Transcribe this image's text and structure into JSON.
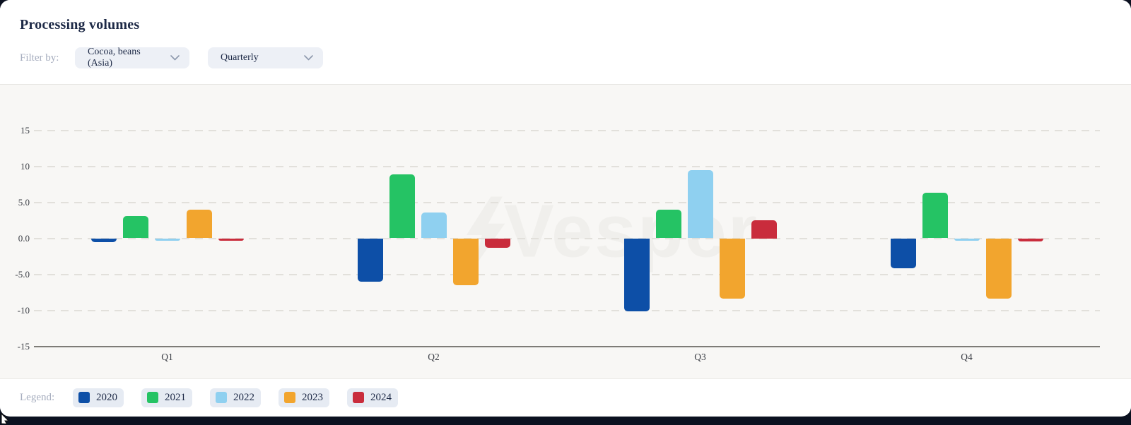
{
  "header": {
    "title": "Processing volumes",
    "filter_label": "Filter by:",
    "filters": [
      {
        "value": "Cocoa, beans (Asia)"
      },
      {
        "value": "Quarterly"
      }
    ]
  },
  "watermark": {
    "text": "Vesper"
  },
  "legend": {
    "label": "Legend:"
  },
  "colors": {
    "page_background": "#0b1120",
    "card_background": "#ffffff",
    "chart_background": "#f8f7f5",
    "gridline": "#e2e0db",
    "baseline": "#7e7c77"
  },
  "chart_data": {
    "type": "bar",
    "title": "Processing volumes",
    "categories": [
      "Q1",
      "Q2",
      "Q3",
      "Q4"
    ],
    "series": [
      {
        "name": "2020",
        "color": "#0d4fa7",
        "values": [
          -0.5,
          -6.0,
          -10.1,
          -4.2
        ]
      },
      {
        "name": "2021",
        "color": "#25c364",
        "values": [
          3.1,
          8.9,
          4.0,
          6.3
        ]
      },
      {
        "name": "2022",
        "color": "#8fd0f0",
        "values": [
          -0.3,
          3.6,
          9.5,
          -0.2
        ]
      },
      {
        "name": "2023",
        "color": "#f2a52e",
        "values": [
          4.0,
          -6.5,
          -8.4,
          -8.4
        ]
      },
      {
        "name": "2024",
        "color": "#c92c3c",
        "values": [
          -0.3,
          -1.3,
          2.5,
          -0.4
        ]
      }
    ],
    "ylim": [
      -15,
      15
    ],
    "yticks": [
      {
        "value": 15,
        "label": "15"
      },
      {
        "value": 10,
        "label": "10"
      },
      {
        "value": 5,
        "label": "5.0"
      },
      {
        "value": 0,
        "label": "0.0"
      },
      {
        "value": -5,
        "label": "-5.0"
      },
      {
        "value": -10,
        "label": "-10"
      },
      {
        "value": -15,
        "label": "-15"
      }
    ],
    "baseline_value": -15,
    "grid": "horizontal-dashed",
    "legend_position": "bottom"
  }
}
